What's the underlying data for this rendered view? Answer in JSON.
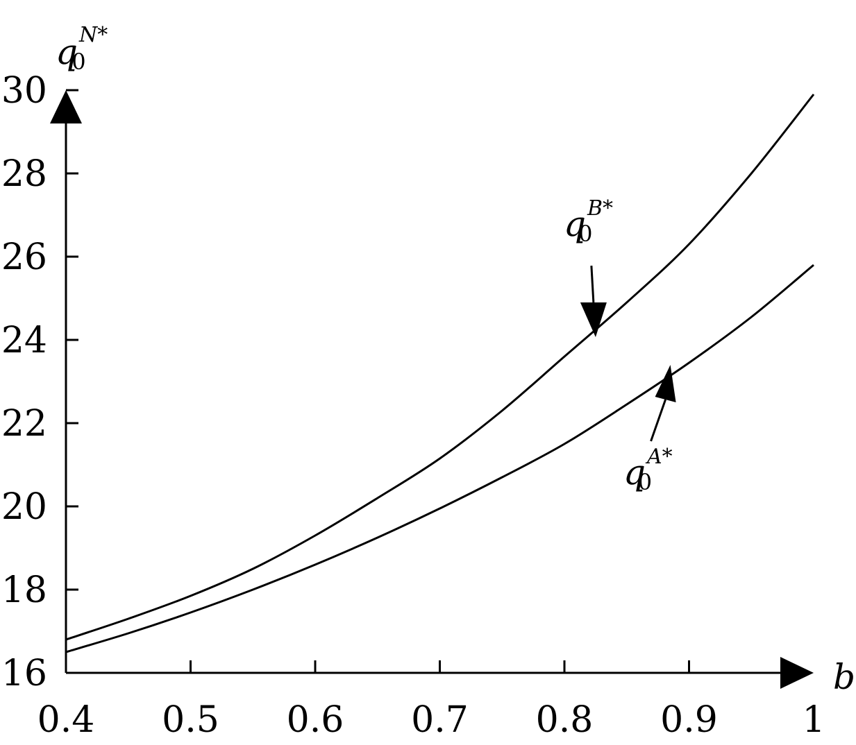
{
  "chart_data": {
    "type": "line",
    "xlabel": "b",
    "ylabel": {
      "base": "q",
      "sub": "0",
      "sup": "N*"
    },
    "xlim": [
      0.4,
      1.0
    ],
    "ylim": [
      16,
      30
    ],
    "x_ticks": [
      "0.4",
      "0.5",
      "0.6",
      "0.7",
      "0.8",
      "0.9",
      "1"
    ],
    "y_ticks": [
      "16",
      "18",
      "20",
      "22",
      "24",
      "26",
      "28",
      "30"
    ],
    "grid": false,
    "series": [
      {
        "name": "q0B*",
        "label": {
          "base": "q",
          "sub": "0",
          "sup": "B*"
        },
        "x": [
          0.4,
          0.45,
          0.5,
          0.55,
          0.6,
          0.65,
          0.7,
          0.75,
          0.8,
          0.85,
          0.9,
          0.95,
          1.0
        ],
        "values": [
          16.8,
          17.3,
          17.85,
          18.5,
          19.3,
          20.2,
          21.15,
          22.3,
          23.6,
          24.9,
          26.3,
          28.0,
          29.9
        ]
      },
      {
        "name": "q0A*",
        "label": {
          "base": "q",
          "sub": "0",
          "sup": "A*"
        },
        "x": [
          0.4,
          0.45,
          0.5,
          0.55,
          0.6,
          0.65,
          0.7,
          0.75,
          0.8,
          0.85,
          0.9,
          0.95,
          1.0
        ],
        "values": [
          16.5,
          16.95,
          17.45,
          18.0,
          18.6,
          19.25,
          19.95,
          20.7,
          21.5,
          22.45,
          23.45,
          24.55,
          25.8
        ]
      }
    ],
    "annotations": [
      {
        "series": "q0B*",
        "arrow_to_x": 0.825,
        "arrow_to_y": 24.1
      },
      {
        "series": "q0A*",
        "arrow_to_x": 0.885,
        "arrow_to_y": 23.3
      }
    ]
  }
}
